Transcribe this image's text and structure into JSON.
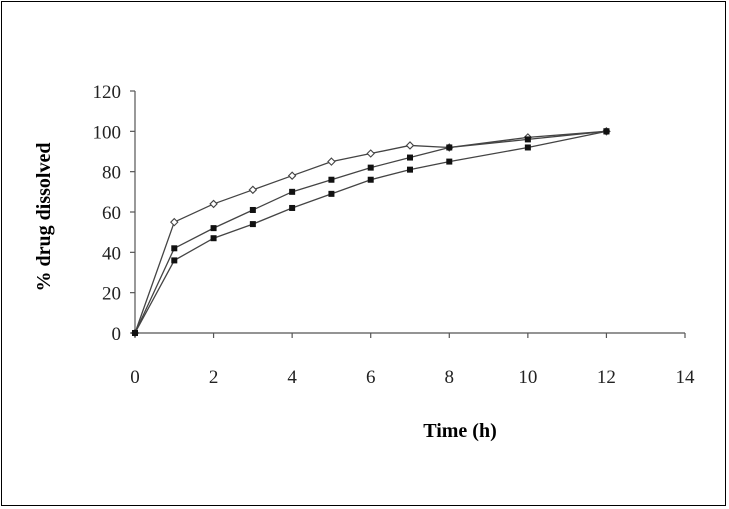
{
  "chart_data": {
    "type": "line",
    "title": "",
    "xlabel": "Time (h)",
    "ylabel": "% drug dissolved",
    "xlim": [
      0,
      14
    ],
    "ylim": [
      0,
      120
    ],
    "xticks": [
      0,
      2,
      4,
      6,
      8,
      10,
      12,
      14
    ],
    "yticks": [
      0,
      20,
      40,
      60,
      80,
      100,
      120
    ],
    "grid": false,
    "legend": "none",
    "series": [
      {
        "marker": "open-diamond",
        "x": [
          0,
          1,
          2,
          3,
          4,
          5,
          6,
          7,
          8,
          10,
          12
        ],
        "values": [
          0,
          55,
          64,
          71,
          78,
          85,
          89,
          93,
          92,
          97,
          100
        ]
      },
      {
        "marker": "filled-square",
        "x": [
          0,
          1,
          2,
          3,
          4,
          5,
          6,
          7,
          8,
          10,
          12
        ],
        "values": [
          0,
          42,
          52,
          61,
          70,
          76,
          82,
          87,
          92,
          96,
          100
        ]
      },
      {
        "marker": "filled-square",
        "x": [
          0,
          1,
          2,
          3,
          4,
          5,
          6,
          7,
          8,
          10,
          12
        ],
        "values": [
          0,
          36,
          47,
          54,
          62,
          69,
          76,
          81,
          85,
          92,
          100
        ]
      }
    ]
  }
}
